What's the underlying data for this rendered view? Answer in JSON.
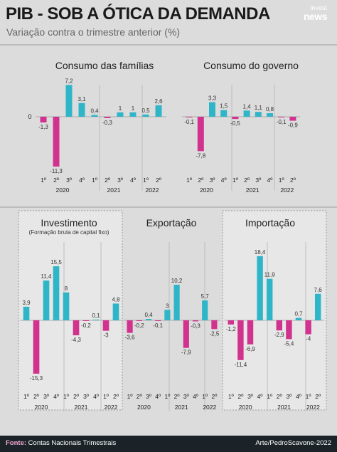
{
  "header": {
    "title": "PIB - SOB A ÓTICA DA DEMANDA",
    "subtitle": "Variação contra o trimestre anterior (%)",
    "logo_line1": "invest",
    "logo_line2": "news"
  },
  "footer": {
    "source_label": "Fonte:",
    "source_text": " Contas Nacionais Trimestrais",
    "credit": "Arte/PedroScavone-2022"
  },
  "colors": {
    "positive": "#2fb5c8",
    "negative": "#d1328e",
    "background": "#dcdcdc",
    "highlight_panel": "#e7e7e7"
  },
  "chart_data": [
    {
      "type": "bar",
      "title": "Consumo das famílias",
      "subtitle": "",
      "zero_tick": "0",
      "quarters": [
        "1º",
        "2º",
        "3º",
        "4º",
        "1º",
        "2º",
        "3º",
        "4º",
        "1º",
        "2º"
      ],
      "years": [
        "2020",
        "2021",
        "2022"
      ],
      "values": [
        -1.3,
        -11.3,
        7.2,
        3.1,
        0.4,
        -0.3,
        1,
        1,
        0.5,
        2.6
      ],
      "labels": [
        "-1,3",
        "-11,3",
        "7,2",
        "3,1",
        "0,4",
        "-0,3",
        "1",
        "1",
        "0,5",
        "2,6"
      ]
    },
    {
      "type": "bar",
      "title": "Consumo do governo",
      "subtitle": "",
      "quarters": [
        "1º",
        "2º",
        "3º",
        "4º",
        "1º",
        "2º",
        "3º",
        "4º",
        "1º",
        "2º"
      ],
      "years": [
        "2020",
        "2021",
        "2022"
      ],
      "values": [
        -0.1,
        -7.8,
        3.3,
        1.5,
        -0.5,
        1.4,
        1.1,
        0.8,
        -0.1,
        -0.9
      ],
      "labels": [
        "-0,1",
        "-7,8",
        "3,3",
        "1,5",
        "-0,5",
        "1,4",
        "1,1",
        "0,8",
        "-0,1",
        "-0,9"
      ]
    },
    {
      "type": "bar",
      "title": "Investimento",
      "subtitle": "(Formação bruta de capital fixo)",
      "quarters": [
        "1º",
        "2º",
        "3º",
        "4º",
        "1º",
        "2º",
        "3º",
        "4º",
        "1º",
        "2º"
      ],
      "years": [
        "2020",
        "2021",
        "2022"
      ],
      "values": [
        3.9,
        -15.3,
        11.4,
        15.5,
        8,
        -4.3,
        -0.2,
        0.1,
        -3,
        4.8
      ],
      "labels": [
        "3,9",
        "-15,3",
        "11,4",
        "15,5",
        "8",
        "-4,3",
        "-0,2",
        "0,1",
        "-3",
        "4,8"
      ]
    },
    {
      "type": "bar",
      "title": "Exportação",
      "subtitle": "",
      "quarters": [
        "1º",
        "2º",
        "3º",
        "4º",
        "1º",
        "2º",
        "3º",
        "4º",
        "1º",
        "2º"
      ],
      "years": [
        "2020",
        "2021",
        "2022"
      ],
      "values": [
        -3.6,
        -0.2,
        0.4,
        -0.1,
        3,
        10.2,
        -7.9,
        -0.3,
        5.7,
        -2.5
      ],
      "labels": [
        "-3,6",
        "-0,2",
        "0,4",
        "-0,1",
        "3",
        "10,2",
        "-7,9",
        "-0,3",
        "5,7",
        "-2,5"
      ]
    },
    {
      "type": "bar",
      "title": "Importação",
      "subtitle": "",
      "quarters": [
        "1º",
        "2º",
        "3º",
        "4º",
        "1º",
        "2º",
        "3º",
        "4º",
        "1º",
        "2º"
      ],
      "years": [
        "2020",
        "2021",
        "2022"
      ],
      "values": [
        -1.2,
        -11.4,
        -6.9,
        18.4,
        11.9,
        -2.9,
        -5.4,
        0.7,
        -4,
        7.6
      ],
      "labels": [
        "-1,2",
        "-11,4",
        "-6,9",
        "18,4",
        "11,9",
        "-2,9",
        "-5,4",
        "0,7",
        "-4",
        "7,6"
      ]
    }
  ]
}
